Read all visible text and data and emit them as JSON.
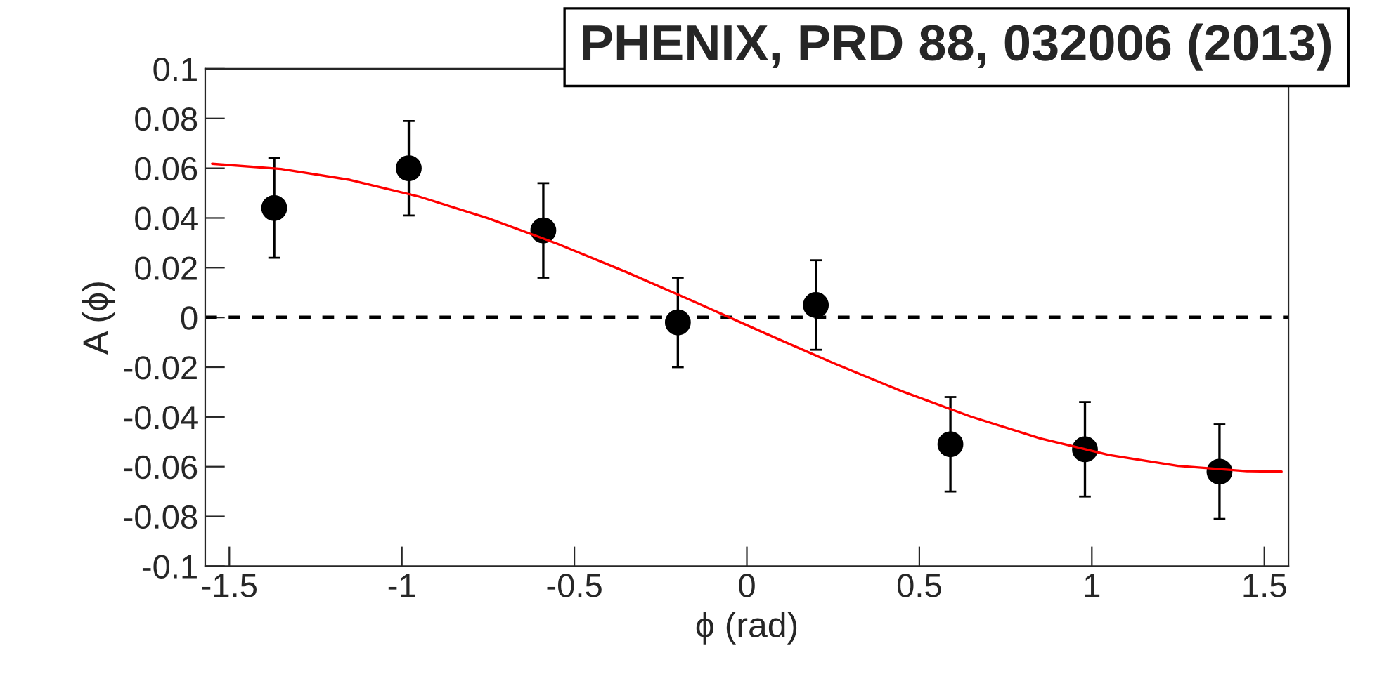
{
  "chart_data": {
    "type": "scatter",
    "title": "PHENIX, PRD 88, 032006 (2013)",
    "xlabel": "ϕ (rad)",
    "ylabel": "A (ϕ)",
    "xlim": [
      -1.57,
      1.57
    ],
    "xticks": [
      -1.5,
      -1,
      -0.5,
      0,
      0.5,
      1,
      1.5
    ],
    "ylim": [
      -0.1,
      0.1
    ],
    "yticks": [
      -0.1,
      -0.08,
      -0.06,
      -0.04,
      -0.02,
      0,
      0.02,
      0.04,
      0.06,
      0.08,
      0.1
    ],
    "grid": false,
    "legend": false,
    "series": [
      {
        "type": "scatter",
        "color": "#000000",
        "marker": "circle",
        "x": [
          -1.37,
          -0.98,
          -0.59,
          -0.2,
          0.2,
          0.59,
          0.98,
          1.37
        ],
        "values": [
          0.044,
          0.06,
          0.035,
          -0.002,
          0.005,
          -0.051,
          -0.053,
          -0.062
        ],
        "errors": [
          0.02,
          0.019,
          0.019,
          0.018,
          0.018,
          0.019,
          0.019,
          0.019
        ]
      },
      {
        "type": "line",
        "color": "#ff0000",
        "marker": "none",
        "line_style": "solid",
        "x": [
          -1.55,
          -1.35,
          -1.15,
          -0.95,
          -0.75,
          -0.55,
          -0.35,
          -0.15,
          0.05,
          0.25,
          0.45,
          0.65,
          0.85,
          1.05,
          1.25,
          1.45,
          1.55
        ],
        "values": [
          0.0618,
          0.0597,
          0.0553,
          0.0486,
          0.0399,
          0.0297,
          0.0183,
          0.0062,
          -0.0062,
          -0.0183,
          -0.0297,
          -0.0399,
          -0.0486,
          -0.0553,
          -0.0597,
          -0.0618,
          -0.062
        ]
      }
    ],
    "ref_lines": [
      {
        "axis": "y",
        "value": 0,
        "color": "#000000",
        "line_style": "dashed"
      }
    ]
  }
}
